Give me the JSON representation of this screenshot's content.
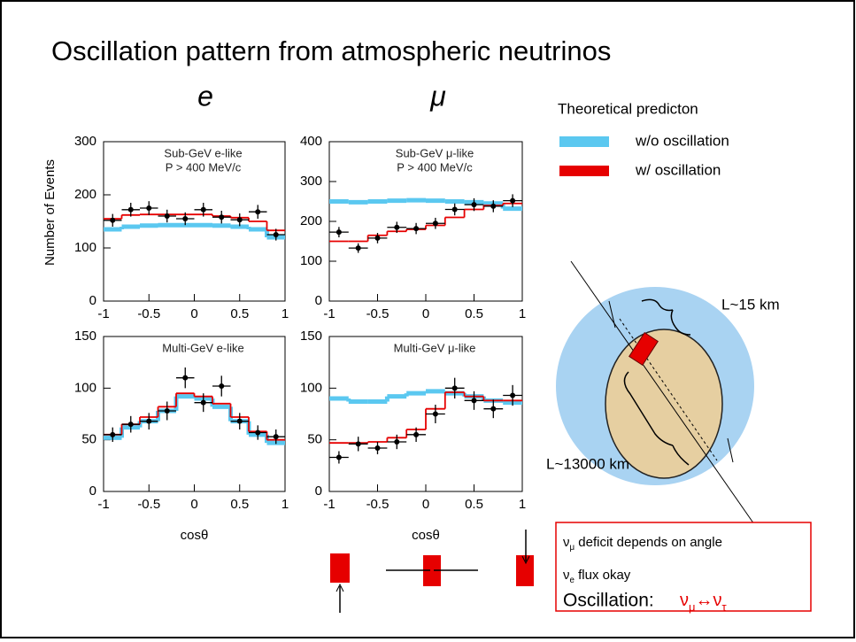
{
  "slide": {
    "title": "Oscillation pattern from atmospheric neutrinos",
    "columns": [
      "e",
      "μ"
    ],
    "legend": {
      "heading": "Theoretical predicton",
      "entries": [
        {
          "label": "w/o oscillation",
          "color": "#5bc8f0"
        },
        {
          "label": "w/ oscillation",
          "color": "#e60000"
        }
      ]
    },
    "diagram": {
      "short": "L~15 km",
      "long": "L~13000 km"
    },
    "box": [
      {
        "nu": "ν",
        "sub": "μ",
        "rest": " deficit depends on angle"
      },
      {
        "nu": "ν",
        "sub": "e",
        "rest": " flux okay"
      }
    ],
    "conclusion": {
      "label": "Oscillation:",
      "nu1": "ν",
      "sub1": "μ",
      "arrow": "↔",
      "nu2": "ν",
      "sub2": "τ"
    }
  },
  "chart_data": [
    {
      "type": "histogram",
      "title": "Sub-GeV e-like",
      "subtitle": "P > 400 MeV/c",
      "ylabel": "Number of Events",
      "bins": [
        -1,
        -0.8,
        -0.6,
        -0.4,
        -0.2,
        0,
        0.2,
        0.4,
        0.6,
        0.8,
        1
      ],
      "series": [
        {
          "color": "#5bc8f0",
          "values": [
            135,
            140,
            142,
            143,
            143,
            143,
            142,
            140,
            135,
            120
          ]
        },
        {
          "color": "#e60000",
          "values": [
            155,
            162,
            163,
            163,
            163,
            163,
            160,
            157,
            150,
            133
          ]
        }
      ],
      "points": {
        "values": [
          152,
          172,
          175,
          160,
          155,
          172,
          158,
          153,
          168,
          125
        ],
        "errors": [
          12,
          13,
          13,
          12,
          12,
          13,
          12,
          12,
          13,
          11
        ]
      },
      "xlim": [
        -1,
        1
      ],
      "xticks": [
        -1,
        -0.5,
        0,
        0.5,
        1
      ],
      "ylim": [
        0,
        300
      ],
      "yticks": [
        0,
        100,
        200,
        300
      ]
    },
    {
      "type": "histogram",
      "title": "Sub-GeV μ-like",
      "subtitle": "P > 400 MeV/c",
      "bins": [
        -1,
        -0.8,
        -0.6,
        -0.4,
        -0.2,
        0,
        0.2,
        0.4,
        0.6,
        0.8,
        1
      ],
      "series": [
        {
          "color": "#5bc8f0",
          "values": [
            250,
            248,
            250,
            252,
            253,
            252,
            250,
            248,
            245,
            232
          ]
        },
        {
          "color": "#e60000",
          "values": [
            150,
            150,
            165,
            175,
            180,
            190,
            210,
            230,
            240,
            245
          ]
        }
      ],
      "points": {
        "values": [
          173,
          133,
          158,
          185,
          182,
          195,
          230,
          242,
          238,
          252
        ],
        "errors": [
          13,
          12,
          13,
          14,
          14,
          14,
          15,
          16,
          15,
          16
        ]
      },
      "xlim": [
        -1,
        1
      ],
      "xticks": [
        -1,
        -0.5,
        0,
        0.5,
        1
      ],
      "ylim": [
        0,
        400
      ],
      "yticks": [
        0,
        100,
        200,
        300,
        400
      ]
    },
    {
      "type": "histogram",
      "title": "Multi-GeV e-like",
      "xlabel": "cosθ",
      "bins": [
        -1,
        -0.8,
        -0.6,
        -0.4,
        -0.2,
        0,
        0.2,
        0.4,
        0.6,
        0.8,
        1
      ],
      "series": [
        {
          "color": "#5bc8f0",
          "values": [
            52,
            62,
            68,
            78,
            92,
            90,
            82,
            68,
            55,
            47
          ]
        },
        {
          "color": "#e60000",
          "values": [
            55,
            65,
            72,
            82,
            95,
            92,
            85,
            72,
            58,
            50
          ]
        }
      ],
      "points": {
        "values": [
          55,
          65,
          68,
          78,
          110,
          86,
          102,
          68,
          57,
          53
        ],
        "errors": [
          7,
          8,
          8,
          9,
          10,
          9,
          10,
          8,
          7,
          7
        ]
      },
      "xlim": [
        -1,
        1
      ],
      "xticks": [
        -1,
        -0.5,
        0,
        0.5,
        1
      ],
      "ylim": [
        0,
        150
      ],
      "yticks": [
        0,
        50,
        100,
        150
      ]
    },
    {
      "type": "histogram",
      "title": "Multi-GeV μ-like",
      "xlabel": "cosθ",
      "bins": [
        -1,
        -0.8,
        -0.6,
        -0.4,
        -0.2,
        0,
        0.2,
        0.4,
        0.6,
        0.8,
        1
      ],
      "series": [
        {
          "color": "#5bc8f0",
          "values": [
            90,
            87,
            87,
            92,
            95,
            97,
            95,
            92,
            88,
            86
          ]
        },
        {
          "color": "#e60000",
          "values": [
            47,
            47,
            48,
            52,
            60,
            80,
            96,
            92,
            88,
            88
          ]
        }
      ],
      "points": {
        "values": [
          33,
          46,
          42,
          48,
          55,
          75,
          100,
          88,
          80,
          93
        ],
        "errors": [
          6,
          7,
          6,
          7,
          7,
          9,
          10,
          9,
          9,
          10
        ]
      },
      "xlim": [
        -1,
        1
      ],
      "xticks": [
        -1,
        -0.5,
        0,
        0.5,
        1
      ],
      "ylim": [
        0,
        150
      ],
      "yticks": [
        0,
        50,
        100,
        150
      ]
    }
  ]
}
